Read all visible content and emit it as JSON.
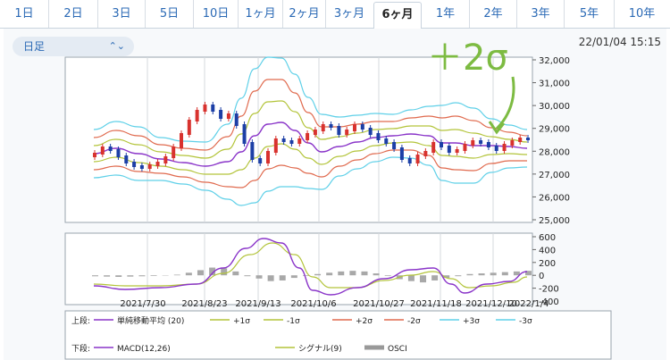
{
  "tabs": [
    {
      "label": "1日"
    },
    {
      "label": "2日"
    },
    {
      "label": "3日"
    },
    {
      "label": "5日"
    },
    {
      "label": "10日"
    },
    {
      "label": "1ヶ月"
    },
    {
      "label": "2ヶ月"
    },
    {
      "label": "3ヶ月"
    },
    {
      "label": "6ヶ月",
      "active": true
    },
    {
      "label": "1年"
    },
    {
      "label": "2年"
    },
    {
      "label": "3年"
    },
    {
      "label": "5年"
    },
    {
      "label": "10年"
    }
  ],
  "period_select": {
    "value": "日足"
  },
  "timestamp": "22/01/04 15:15",
  "annotation": {
    "label": "＋2σ",
    "color": "#7dbb42"
  },
  "chart_data": [
    {
      "type": "candlestick",
      "panel": "upper",
      "ylim": [
        25000,
        32000
      ],
      "yticks": [
        "32,000",
        "31,000",
        "30,000",
        "29,000",
        "28,000",
        "27,000",
        "26,000",
        "25,000"
      ],
      "xticks": [
        "2021/7/30",
        "2021/8/23",
        "2021/9/13",
        "2021/10/6",
        "2021/10/27",
        "2021/11/18",
        "2021/12/10",
        "2022/1/4"
      ],
      "series": [
        {
          "name": "単純移動平均 (20)",
          "color": "#8a35c9"
        },
        {
          "name": "+1σ",
          "color": "#b3c43a"
        },
        {
          "name": "-1σ",
          "color": "#b3c43a"
        },
        {
          "name": "+2σ",
          "color": "#e06a4e"
        },
        {
          "name": "-2σ",
          "color": "#e06a4e"
        },
        {
          "name": "+3σ",
          "color": "#5fd0e8"
        },
        {
          "name": "-3σ",
          "color": "#5fd0e8"
        }
      ]
    },
    {
      "type": "line",
      "panel": "lower",
      "ylim": [
        -400,
        600
      ],
      "yticks": [
        "600",
        "400",
        "200",
        "0",
        "-200",
        "-400"
      ],
      "series": [
        {
          "name": "MACD(12,26)",
          "color": "#8a35c9"
        },
        {
          "name": "シグナル(9)",
          "color": "#b3c43a"
        },
        {
          "name": "OSCI",
          "color": "#999999"
        }
      ]
    }
  ],
  "legend": {
    "upper_label": "上段:",
    "lower_label": "下段:"
  }
}
